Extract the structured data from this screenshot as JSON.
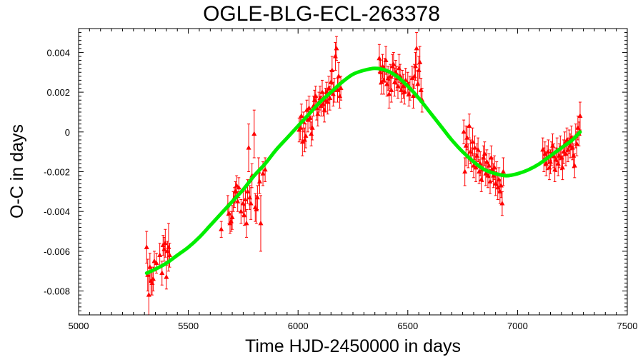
{
  "chart_data": {
    "type": "scatter",
    "title": "OGLE-BLG-ECL-263378",
    "xlabel": "Time HJD-2450000 in days",
    "ylabel": "O-C in days",
    "xlim": [
      5000,
      7500
    ],
    "ylim": [
      -0.0092,
      0.0052
    ],
    "x_ticks": [
      5000,
      5500,
      6000,
      6500,
      7000,
      7500
    ],
    "y_ticks": [
      -0.008,
      -0.006,
      -0.004,
      -0.002,
      0,
      0.002,
      0.004
    ],
    "x_tick_labels": [
      "5000",
      "5500",
      "6000",
      "6500",
      "7000",
      "7500"
    ],
    "y_tick_labels": [
      "-0.008",
      "-0.006",
      "-0.004",
      "-0.002",
      "0",
      "0.002",
      "0.004"
    ],
    "grid": false,
    "colors": {
      "points": "#ff0000",
      "fit": "#00ee00",
      "axes": "#000000"
    },
    "series": [
      {
        "kind": "points_with_errorbars",
        "marker": "triangle",
        "points": [
          [
            5310,
            -0.0058,
            0.0008
          ],
          [
            5315,
            -0.0072,
            0.0008
          ],
          [
            5320,
            -0.0082,
            0.001
          ],
          [
            5325,
            -0.0068,
            0.0007
          ],
          [
            5330,
            -0.0075,
            0.0007
          ],
          [
            5335,
            -0.0076,
            0.0006
          ],
          [
            5340,
            -0.0074,
            0.0006
          ],
          [
            5345,
            -0.0065,
            0.0005
          ],
          [
            5355,
            -0.0066,
            0.0005
          ],
          [
            5370,
            -0.0062,
            0.0006
          ],
          [
            5380,
            -0.0071,
            0.0006
          ],
          [
            5385,
            -0.0057,
            0.0005
          ],
          [
            5390,
            -0.0059,
            0.0006
          ],
          [
            5395,
            -0.0056,
            0.0007
          ],
          [
            5400,
            -0.0073,
            0.0006
          ],
          [
            5405,
            -0.006,
            0.0005
          ],
          [
            5410,
            -0.0058,
            0.0012
          ],
          [
            5415,
            -0.0062,
            0.0006
          ],
          [
            5650,
            -0.0049,
            0.0004
          ],
          [
            5680,
            -0.0037,
            0.0005
          ],
          [
            5685,
            -0.0041,
            0.0005
          ],
          [
            5690,
            -0.0046,
            0.0005
          ],
          [
            5695,
            -0.0045,
            0.0005
          ],
          [
            5700,
            -0.0043,
            0.0006
          ],
          [
            5705,
            -0.0035,
            0.0005
          ],
          [
            5710,
            -0.0033,
            0.0005
          ],
          [
            5715,
            -0.003,
            0.0005
          ],
          [
            5720,
            -0.0027,
            0.0005
          ],
          [
            5725,
            -0.0035,
            0.0005
          ],
          [
            5730,
            -0.0028,
            0.0005
          ],
          [
            5740,
            -0.004,
            0.0006
          ],
          [
            5750,
            -0.0036,
            0.0006
          ],
          [
            5755,
            -0.0042,
            0.0005
          ],
          [
            5760,
            -0.0034,
            0.0006
          ],
          [
            5765,
            -0.0046,
            0.0007
          ],
          [
            5770,
            -0.003,
            0.0006
          ],
          [
            5775,
            -0.0008,
            0.0012
          ],
          [
            5780,
            -0.0033,
            0.0006
          ],
          [
            5785,
            -0.0036,
            0.0008
          ],
          [
            5790,
            -0.0022,
            0.0006
          ],
          [
            5800,
            -0.0001,
            0.0012
          ],
          [
            5805,
            -0.0038,
            0.0007
          ],
          [
            5810,
            -0.0039,
            0.0007
          ],
          [
            5815,
            -0.0033,
            0.0006
          ],
          [
            5820,
            -0.002,
            0.0007
          ],
          [
            5825,
            -0.0025,
            0.0006
          ],
          [
            5830,
            -0.0046,
            0.0014
          ],
          [
            5840,
            -0.0021,
            0.0006
          ],
          [
            5850,
            -0.0019,
            0.0006
          ],
          [
            6005,
            0.0001,
            0.0006
          ],
          [
            6010,
            0.0002,
            0.0006
          ],
          [
            6015,
            0.0008,
            0.0006
          ],
          [
            6020,
            -0.0005,
            0.0007
          ],
          [
            6025,
            0.0005,
            0.0005
          ],
          [
            6030,
            -0.0004,
            0.0006
          ],
          [
            6035,
            -0.0002,
            0.0006
          ],
          [
            6040,
            0.0011,
            0.0005
          ],
          [
            6045,
            0.0006,
            0.0006
          ],
          [
            6050,
            0.0012,
            0.0006
          ],
          [
            6055,
            0.0007,
            0.0005
          ],
          [
            6060,
            -0.0001,
            0.0006
          ],
          [
            6065,
            0.0002,
            0.0006
          ],
          [
            6070,
            0.0013,
            0.0005
          ],
          [
            6075,
            0.0016,
            0.0005
          ],
          [
            6080,
            0.0018,
            0.0005
          ],
          [
            6085,
            0.0012,
            0.0006
          ],
          [
            6090,
            0.0009,
            0.0006
          ],
          [
            6095,
            0.0015,
            0.0005
          ],
          [
            6100,
            0.0017,
            0.0006
          ],
          [
            6105,
            0.0013,
            0.0005
          ],
          [
            6110,
            0.002,
            0.0006
          ],
          [
            6115,
            0.0014,
            0.0006
          ],
          [
            6120,
            0.0011,
            0.0006
          ],
          [
            6125,
            0.0016,
            0.0006
          ],
          [
            6130,
            0.002,
            0.0005
          ],
          [
            6135,
            0.0015,
            0.0006
          ],
          [
            6140,
            0.0022,
            0.0006
          ],
          [
            6145,
            0.0017,
            0.0006
          ],
          [
            6150,
            0.0025,
            0.0006
          ],
          [
            6155,
            0.0031,
            0.0007
          ],
          [
            6160,
            0.0019,
            0.0006
          ],
          [
            6165,
            0.0021,
            0.0006
          ],
          [
            6170,
            0.0038,
            0.0007
          ],
          [
            6175,
            0.0042,
            0.0006
          ],
          [
            6180,
            0.0021,
            0.0006
          ],
          [
            6185,
            0.0028,
            0.0007
          ],
          [
            6190,
            0.0018,
            0.0006
          ],
          [
            6195,
            0.0022,
            0.0006
          ],
          [
            6370,
            0.0037,
            0.0007
          ],
          [
            6375,
            0.003,
            0.0006
          ],
          [
            6380,
            0.0025,
            0.0006
          ],
          [
            6385,
            0.0033,
            0.0006
          ],
          [
            6390,
            0.0026,
            0.0007
          ],
          [
            6395,
            0.0031,
            0.0006
          ],
          [
            6400,
            0.0036,
            0.0007
          ],
          [
            6405,
            0.0024,
            0.0006
          ],
          [
            6410,
            0.0027,
            0.0006
          ],
          [
            6415,
            0.0019,
            0.0007
          ],
          [
            6420,
            0.0028,
            0.0006
          ],
          [
            6425,
            0.0021,
            0.0006
          ],
          [
            6430,
            0.0033,
            0.0006
          ],
          [
            6435,
            0.0034,
            0.0006
          ],
          [
            6440,
            0.0025,
            0.0007
          ],
          [
            6445,
            0.003,
            0.0006
          ],
          [
            6450,
            0.0027,
            0.0006
          ],
          [
            6455,
            0.0023,
            0.0006
          ],
          [
            6460,
            0.0032,
            0.0007
          ],
          [
            6465,
            0.0028,
            0.0006
          ],
          [
            6470,
            0.0021,
            0.0006
          ],
          [
            6475,
            0.0025,
            0.0006
          ],
          [
            6480,
            0.0023,
            0.0006
          ],
          [
            6485,
            0.002,
            0.0006
          ],
          [
            6490,
            0.0026,
            0.0006
          ],
          [
            6500,
            0.0024,
            0.0006
          ],
          [
            6505,
            0.0019,
            0.0006
          ],
          [
            6510,
            0.0022,
            0.0006
          ],
          [
            6520,
            0.0027,
            0.0006
          ],
          [
            6525,
            0.0018,
            0.0006
          ],
          [
            6530,
            0.0028,
            0.0006
          ],
          [
            6535,
            0.0033,
            0.0007
          ],
          [
            6540,
            0.0042,
            0.0008
          ],
          [
            6545,
            0.0024,
            0.0007
          ],
          [
            6550,
            0.0031,
            0.0007
          ],
          [
            6555,
            0.0035,
            0.0008
          ],
          [
            6560,
            0.0021,
            0.0006
          ],
          [
            6565,
            0.0016,
            0.0006
          ],
          [
            6755,
            0.0,
            0.0006
          ],
          [
            6760,
            -0.002,
            0.0007
          ],
          [
            6765,
            -0.0007,
            0.001
          ],
          [
            6770,
            -0.0003,
            0.0006
          ],
          [
            6775,
            -0.0012,
            0.0006
          ],
          [
            6780,
            0.0003,
            0.0006
          ],
          [
            6785,
            -0.001,
            0.0006
          ],
          [
            6790,
            -0.0014,
            0.0006
          ],
          [
            6795,
            -0.0005,
            0.0007
          ],
          [
            6800,
            -0.0017,
            0.0006
          ],
          [
            6805,
            -0.0008,
            0.0006
          ],
          [
            6810,
            -0.0018,
            0.0007
          ],
          [
            6815,
            -0.0012,
            0.0006
          ],
          [
            6820,
            -0.0009,
            0.0006
          ],
          [
            6825,
            -0.002,
            0.0006
          ],
          [
            6830,
            -0.0016,
            0.0006
          ],
          [
            6835,
            -0.0024,
            0.0006
          ],
          [
            6840,
            -0.0019,
            0.0006
          ],
          [
            6845,
            -0.0013,
            0.0006
          ],
          [
            6850,
            -0.0011,
            0.0006
          ],
          [
            6855,
            -0.0021,
            0.0006
          ],
          [
            6860,
            -0.0015,
            0.0006
          ],
          [
            6865,
            -0.0022,
            0.0006
          ],
          [
            6870,
            -0.0017,
            0.0006
          ],
          [
            6875,
            -0.0025,
            0.0006
          ],
          [
            6880,
            -0.0013,
            0.0006
          ],
          [
            6885,
            -0.0019,
            0.0006
          ],
          [
            6890,
            -0.0022,
            0.0006
          ],
          [
            6895,
            -0.0018,
            0.0006
          ],
          [
            6900,
            -0.0026,
            0.0006
          ],
          [
            6905,
            -0.0021,
            0.0006
          ],
          [
            6910,
            -0.0028,
            0.0006
          ],
          [
            6915,
            -0.0024,
            0.0006
          ],
          [
            6920,
            -0.003,
            0.0006
          ],
          [
            6925,
            -0.0027,
            0.0006
          ],
          [
            6930,
            -0.0036,
            0.0006
          ],
          [
            6935,
            -0.002,
            0.0007
          ],
          [
            7115,
            -0.0009,
            0.0006
          ],
          [
            7120,
            -0.0014,
            0.0006
          ],
          [
            7125,
            -0.0011,
            0.0006
          ],
          [
            7130,
            -0.0016,
            0.0006
          ],
          [
            7135,
            -0.0013,
            0.0006
          ],
          [
            7140,
            -0.001,
            0.0006
          ],
          [
            7145,
            -0.0018,
            0.0006
          ],
          [
            7150,
            -0.0015,
            0.0006
          ],
          [
            7155,
            -0.0011,
            0.0006
          ],
          [
            7160,
            -0.0007,
            0.0006
          ],
          [
            7165,
            -0.0012,
            0.0006
          ],
          [
            7170,
            -0.0019,
            0.0006
          ],
          [
            7175,
            -0.0014,
            0.0006
          ],
          [
            7180,
            -0.0009,
            0.0006
          ],
          [
            7185,
            -0.0016,
            0.0006
          ],
          [
            7190,
            -0.0012,
            0.0006
          ],
          [
            7195,
            -0.0008,
            0.0006
          ],
          [
            7200,
            -0.0013,
            0.0006
          ],
          [
            7205,
            -0.0018,
            0.0006
          ],
          [
            7210,
            -0.001,
            0.0006
          ],
          [
            7215,
            -0.0006,
            0.0006
          ],
          [
            7220,
            -0.0011,
            0.0006
          ],
          [
            7225,
            -0.0004,
            0.0006
          ],
          [
            7230,
            -0.0009,
            0.0006
          ],
          [
            7235,
            -0.0005,
            0.0006
          ],
          [
            7240,
            -0.0007,
            0.0006
          ],
          [
            7245,
            -0.0003,
            0.0006
          ],
          [
            7250,
            -0.0008,
            0.0006
          ],
          [
            7255,
            -0.0012,
            0.0006
          ],
          [
            7260,
            -0.0017,
            0.0006
          ],
          [
            7265,
            -0.0002,
            0.0006
          ],
          [
            7270,
            -0.0006,
            0.0006
          ],
          [
            7275,
            0.0002,
            0.0006
          ],
          [
            7280,
            -0.0001,
            0.0006
          ],
          [
            7285,
            0.0008,
            0.0007
          ]
        ]
      },
      {
        "kind": "fit_curve",
        "x": [
          5310,
          5350,
          5400,
          5450,
          5500,
          5550,
          5600,
          5650,
          5700,
          5750,
          5800,
          5850,
          5900,
          5950,
          6000,
          6050,
          6100,
          6150,
          6200,
          6250,
          6300,
          6350,
          6400,
          6450,
          6500,
          6550,
          6600,
          6650,
          6700,
          6750,
          6800,
          6850,
          6900,
          6950,
          7000,
          7050,
          7100,
          7150,
          7200,
          7250,
          7285
        ],
        "y": [
          -0.0071,
          -0.0069,
          -0.0066,
          -0.0062,
          -0.0058,
          -0.0053,
          -0.0047,
          -0.0041,
          -0.0035,
          -0.0029,
          -0.0022,
          -0.0016,
          -0.0009,
          -0.0003,
          0.0003,
          0.0009,
          0.0015,
          0.002,
          0.0025,
          0.0029,
          0.0031,
          0.0032,
          0.0031,
          0.0028,
          0.0023,
          0.0017,
          0.001,
          0.0003,
          -0.0004,
          -0.001,
          -0.0015,
          -0.0019,
          -0.0021,
          -0.0022,
          -0.0021,
          -0.0019,
          -0.0016,
          -0.0012,
          -0.0008,
          -0.0004,
          0.0
        ]
      }
    ]
  }
}
